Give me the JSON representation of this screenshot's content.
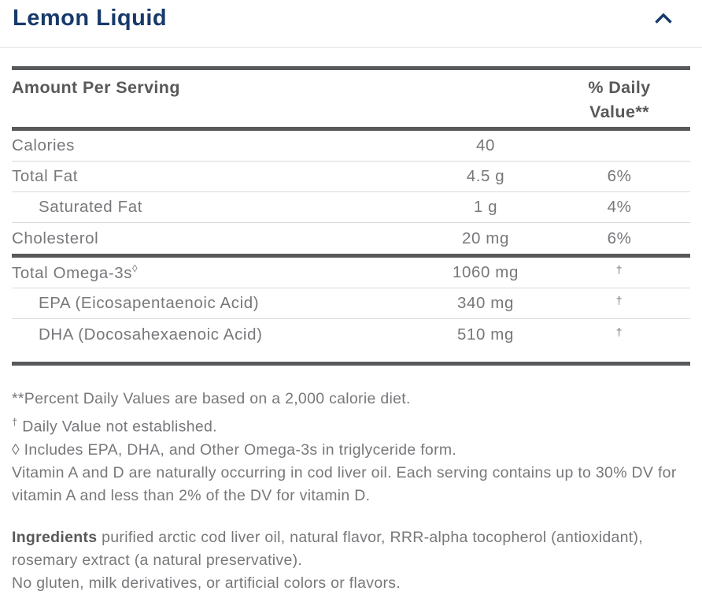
{
  "colors": {
    "brand_navy": "#173a6b",
    "rule_dark": "#58595b",
    "divider_light": "#d9d9d9",
    "header_divider": "#e6e6e6",
    "text_gray": "#77787b",
    "text_dark": "#58595b"
  },
  "accordion": {
    "title": "Lemon Liquid",
    "expanded": true,
    "chevron_icon": "chevron-up"
  },
  "table": {
    "header": {
      "amount_column": "Amount Per Serving",
      "dv_column": "% Daily Value**"
    },
    "groups": [
      {
        "rows": [
          {
            "label": "Calories",
            "amount": "40",
            "dv": "",
            "indent": false
          },
          {
            "label": "Total Fat",
            "amount": "4.5 g",
            "dv": "6%",
            "indent": false
          },
          {
            "label": "Saturated Fat",
            "amount": "1 g",
            "dv": "4%",
            "indent": true
          },
          {
            "label": "Cholesterol",
            "amount": "20 mg",
            "dv": "6%",
            "indent": false
          }
        ]
      },
      {
        "rows": [
          {
            "label": "Total Omega-3s",
            "label_sup": "◊",
            "amount": "1060 mg",
            "dv": "†",
            "dv_is_dagger": true,
            "indent": false
          },
          {
            "label": "EPA (Eicosapentaenoic Acid)",
            "amount": "340 mg",
            "dv": "†",
            "dv_is_dagger": true,
            "indent": true
          },
          {
            "label": "DHA (Docosahexaenoic Acid)",
            "amount": "510 mg",
            "dv": "†",
            "dv_is_dagger": true,
            "indent": true
          }
        ]
      }
    ]
  },
  "footnotes": [
    {
      "text": "**Percent Daily Values are based on a 2,000 calorie diet."
    },
    {
      "sup": "†",
      "text": "Daily Value not established."
    },
    {
      "text": "◊ Includes EPA, DHA, and Other Omega-3s in triglyceride form."
    },
    {
      "text": "Vitamin A and D are naturally occurring in cod liver oil. Each serving contains up to 30% DV for vitamin A and less than 2% of the DV for vitamin D."
    }
  ],
  "ingredients": {
    "label": "Ingredients",
    "text": "purified arctic cod liver oil, natural flavor, RRR-alpha tocopherol (antioxidant), rosemary extract (a natural preservative).",
    "allergen_note": "No gluten, milk derivatives, or artificial colors or flavors."
  }
}
